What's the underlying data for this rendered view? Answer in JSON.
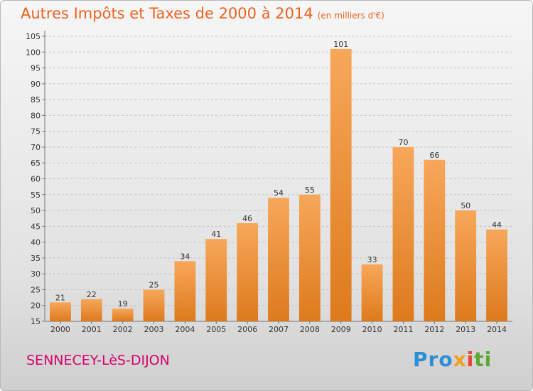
{
  "title": "Autres Impôts et Taxes de 2000 à 2014",
  "title_unit": "(en milliers d'€)",
  "city": "SENNECEY-LèS-DIJON",
  "logo": [
    "Pro",
    "x",
    "i",
    "ti"
  ],
  "colors": {
    "title": "#ee6320",
    "city": "#d6006d",
    "bar_top": "#f7a75a",
    "bar_bottom": "#dd7a1c"
  },
  "chart_data": {
    "type": "bar",
    "categories": [
      "2000",
      "2001",
      "2002",
      "2003",
      "2004",
      "2005",
      "2006",
      "2007",
      "2008",
      "2009",
      "2010",
      "2011",
      "2012",
      "2013",
      "2014"
    ],
    "values": [
      21,
      22,
      19,
      25,
      34,
      41,
      46,
      54,
      55,
      101,
      33,
      70,
      66,
      50,
      44
    ],
    "ylim": [
      15,
      105
    ],
    "yticks": [
      15,
      20,
      25,
      30,
      35,
      40,
      45,
      50,
      55,
      60,
      65,
      70,
      75,
      80,
      85,
      90,
      95,
      100,
      105
    ],
    "grid": true
  }
}
